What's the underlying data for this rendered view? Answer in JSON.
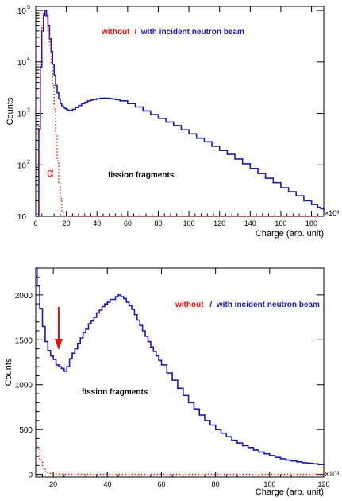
{
  "chart_data": [
    {
      "type": "line",
      "scale": "log-y",
      "ylabel": "Counts",
      "xlabel": "Charge (arb. unit)",
      "x_exponent": "×10³",
      "xlim": [
        0,
        188
      ],
      "ylim": [
        10,
        120000
      ],
      "x_ticks": [
        0,
        20,
        40,
        60,
        80,
        100,
        120,
        140,
        160,
        180
      ],
      "y_ticks": [
        {
          "value": 10,
          "base": "10",
          "exp": ""
        },
        {
          "value": 100,
          "base": "10",
          "exp": "2"
        },
        {
          "value": 1000,
          "base": "10",
          "exp": "3"
        },
        {
          "value": 10000,
          "base": "10",
          "exp": "4"
        },
        {
          "value": 100000,
          "base": "10",
          "exp": "5"
        }
      ],
      "legend": {
        "position": "top-center",
        "without": "without",
        "separator": "/",
        "with": "with incident neutron beam"
      },
      "annotations": {
        "alpha": "α",
        "fission": "fission fragments"
      },
      "series": [
        {
          "key": "with",
          "color": "#1a1aa8",
          "style": "solid",
          "x": [
            0,
            1,
            2,
            3,
            4,
            5,
            6,
            7,
            8,
            9,
            10,
            11,
            12,
            13,
            14,
            15,
            16,
            17,
            18,
            19,
            20,
            21,
            22,
            24,
            26,
            28,
            30,
            32,
            34,
            36,
            38,
            40,
            42,
            44,
            46,
            48,
            50,
            52,
            55,
            60,
            65,
            70,
            75,
            80,
            85,
            90,
            95,
            100,
            105,
            110,
            115,
            120,
            125,
            130,
            135,
            140,
            145,
            150,
            155,
            160,
            165,
            170,
            175,
            180,
            184,
            186,
            188
          ],
          "y": [
            10,
            10,
            500,
            8000,
            40000,
            80000,
            100000,
            80000,
            50000,
            28000,
            16000,
            9000,
            5500,
            3500,
            2500,
            1900,
            1550,
            1400,
            1300,
            1250,
            1200,
            1150,
            1130,
            1200,
            1300,
            1420,
            1550,
            1650,
            1750,
            1820,
            1870,
            1920,
            1960,
            1980,
            1970,
            1940,
            1900,
            1850,
            1750,
            1550,
            1330,
            1120,
            950,
            800,
            680,
            580,
            480,
            400,
            330,
            280,
            230,
            190,
            160,
            130,
            105,
            85,
            68,
            55,
            45,
            36,
            30,
            25,
            20,
            17,
            15,
            14,
            13
          ]
        },
        {
          "key": "without",
          "color": "#e81010",
          "style": "dotted",
          "x": [
            0,
            1,
            2,
            3,
            4,
            5,
            6,
            7,
            8,
            9,
            10,
            11,
            12,
            13,
            14,
            15,
            16,
            17,
            18,
            19,
            20,
            30,
            60,
            100,
            150,
            188
          ],
          "y": [
            10,
            12,
            600,
            9000,
            50000,
            90000,
            95000,
            70000,
            40000,
            20000,
            9000,
            3500,
            1200,
            400,
            120,
            45,
            22,
            12,
            10,
            10,
            10,
            10,
            10,
            10,
            10,
            10
          ]
        }
      ]
    },
    {
      "type": "line",
      "scale": "linear",
      "ylabel": "Counts",
      "xlabel": "Charge (arb. unit)",
      "x_exponent": "×10³",
      "xlim": [
        13.5,
        120
      ],
      "ylim": [
        -30,
        2300
      ],
      "x_ticks": [
        20,
        40,
        60,
        80,
        100,
        120
      ],
      "y_ticks": [
        0,
        500,
        1000,
        1500,
        2000
      ],
      "legend": {
        "position": "top-right",
        "without": "without",
        "separator": "/",
        "with": "with incident neutron beam"
      },
      "annotations": {
        "fission": "fission fragments"
      },
      "arrow_x": 22,
      "series": [
        {
          "key": "with",
          "color": "#1a1aa8",
          "style": "solid",
          "x": [
            13.5,
            14,
            15,
            16,
            17,
            18,
            19,
            20,
            21,
            22,
            23,
            24,
            25,
            26,
            27,
            28,
            29,
            30,
            31,
            32,
            33,
            34,
            35,
            36,
            37,
            38,
            39,
            40,
            41,
            42,
            43,
            44,
            45,
            46,
            47,
            48,
            49,
            50,
            51,
            52,
            53,
            54,
            55,
            56,
            57,
            58,
            59,
            60,
            62,
            64,
            66,
            68,
            70,
            72,
            74,
            76,
            78,
            80,
            82,
            84,
            86,
            88,
            90,
            92,
            94,
            96,
            98,
            100,
            102,
            104,
            106,
            108,
            110,
            112,
            114,
            116,
            118,
            120
          ],
          "y": [
            2300,
            2100,
            1850,
            1650,
            1480,
            1380,
            1320,
            1280,
            1220,
            1200,
            1180,
            1150,
            1200,
            1290,
            1350,
            1400,
            1460,
            1520,
            1580,
            1620,
            1680,
            1710,
            1750,
            1800,
            1830,
            1870,
            1900,
            1920,
            1950,
            1950,
            1980,
            2000,
            1980,
            1960,
            1920,
            1880,
            1840,
            1780,
            1720,
            1660,
            1600,
            1540,
            1480,
            1420,
            1370,
            1320,
            1270,
            1220,
            1130,
            1050,
            960,
            880,
            800,
            730,
            660,
            600,
            550,
            500,
            460,
            420,
            380,
            350,
            320,
            300,
            270,
            250,
            230,
            210,
            190,
            175,
            160,
            150,
            140,
            130,
            125,
            118,
            110,
            100
          ]
        },
        {
          "key": "without",
          "color": "#e81010",
          "style": "dotted",
          "x": [
            13.5,
            14,
            15,
            16,
            17,
            18,
            19,
            20,
            30,
            60,
            90,
            120
          ],
          "y": [
            350,
            280,
            160,
            70,
            30,
            12,
            5,
            3,
            2,
            2,
            2,
            2
          ]
        }
      ]
    }
  ]
}
